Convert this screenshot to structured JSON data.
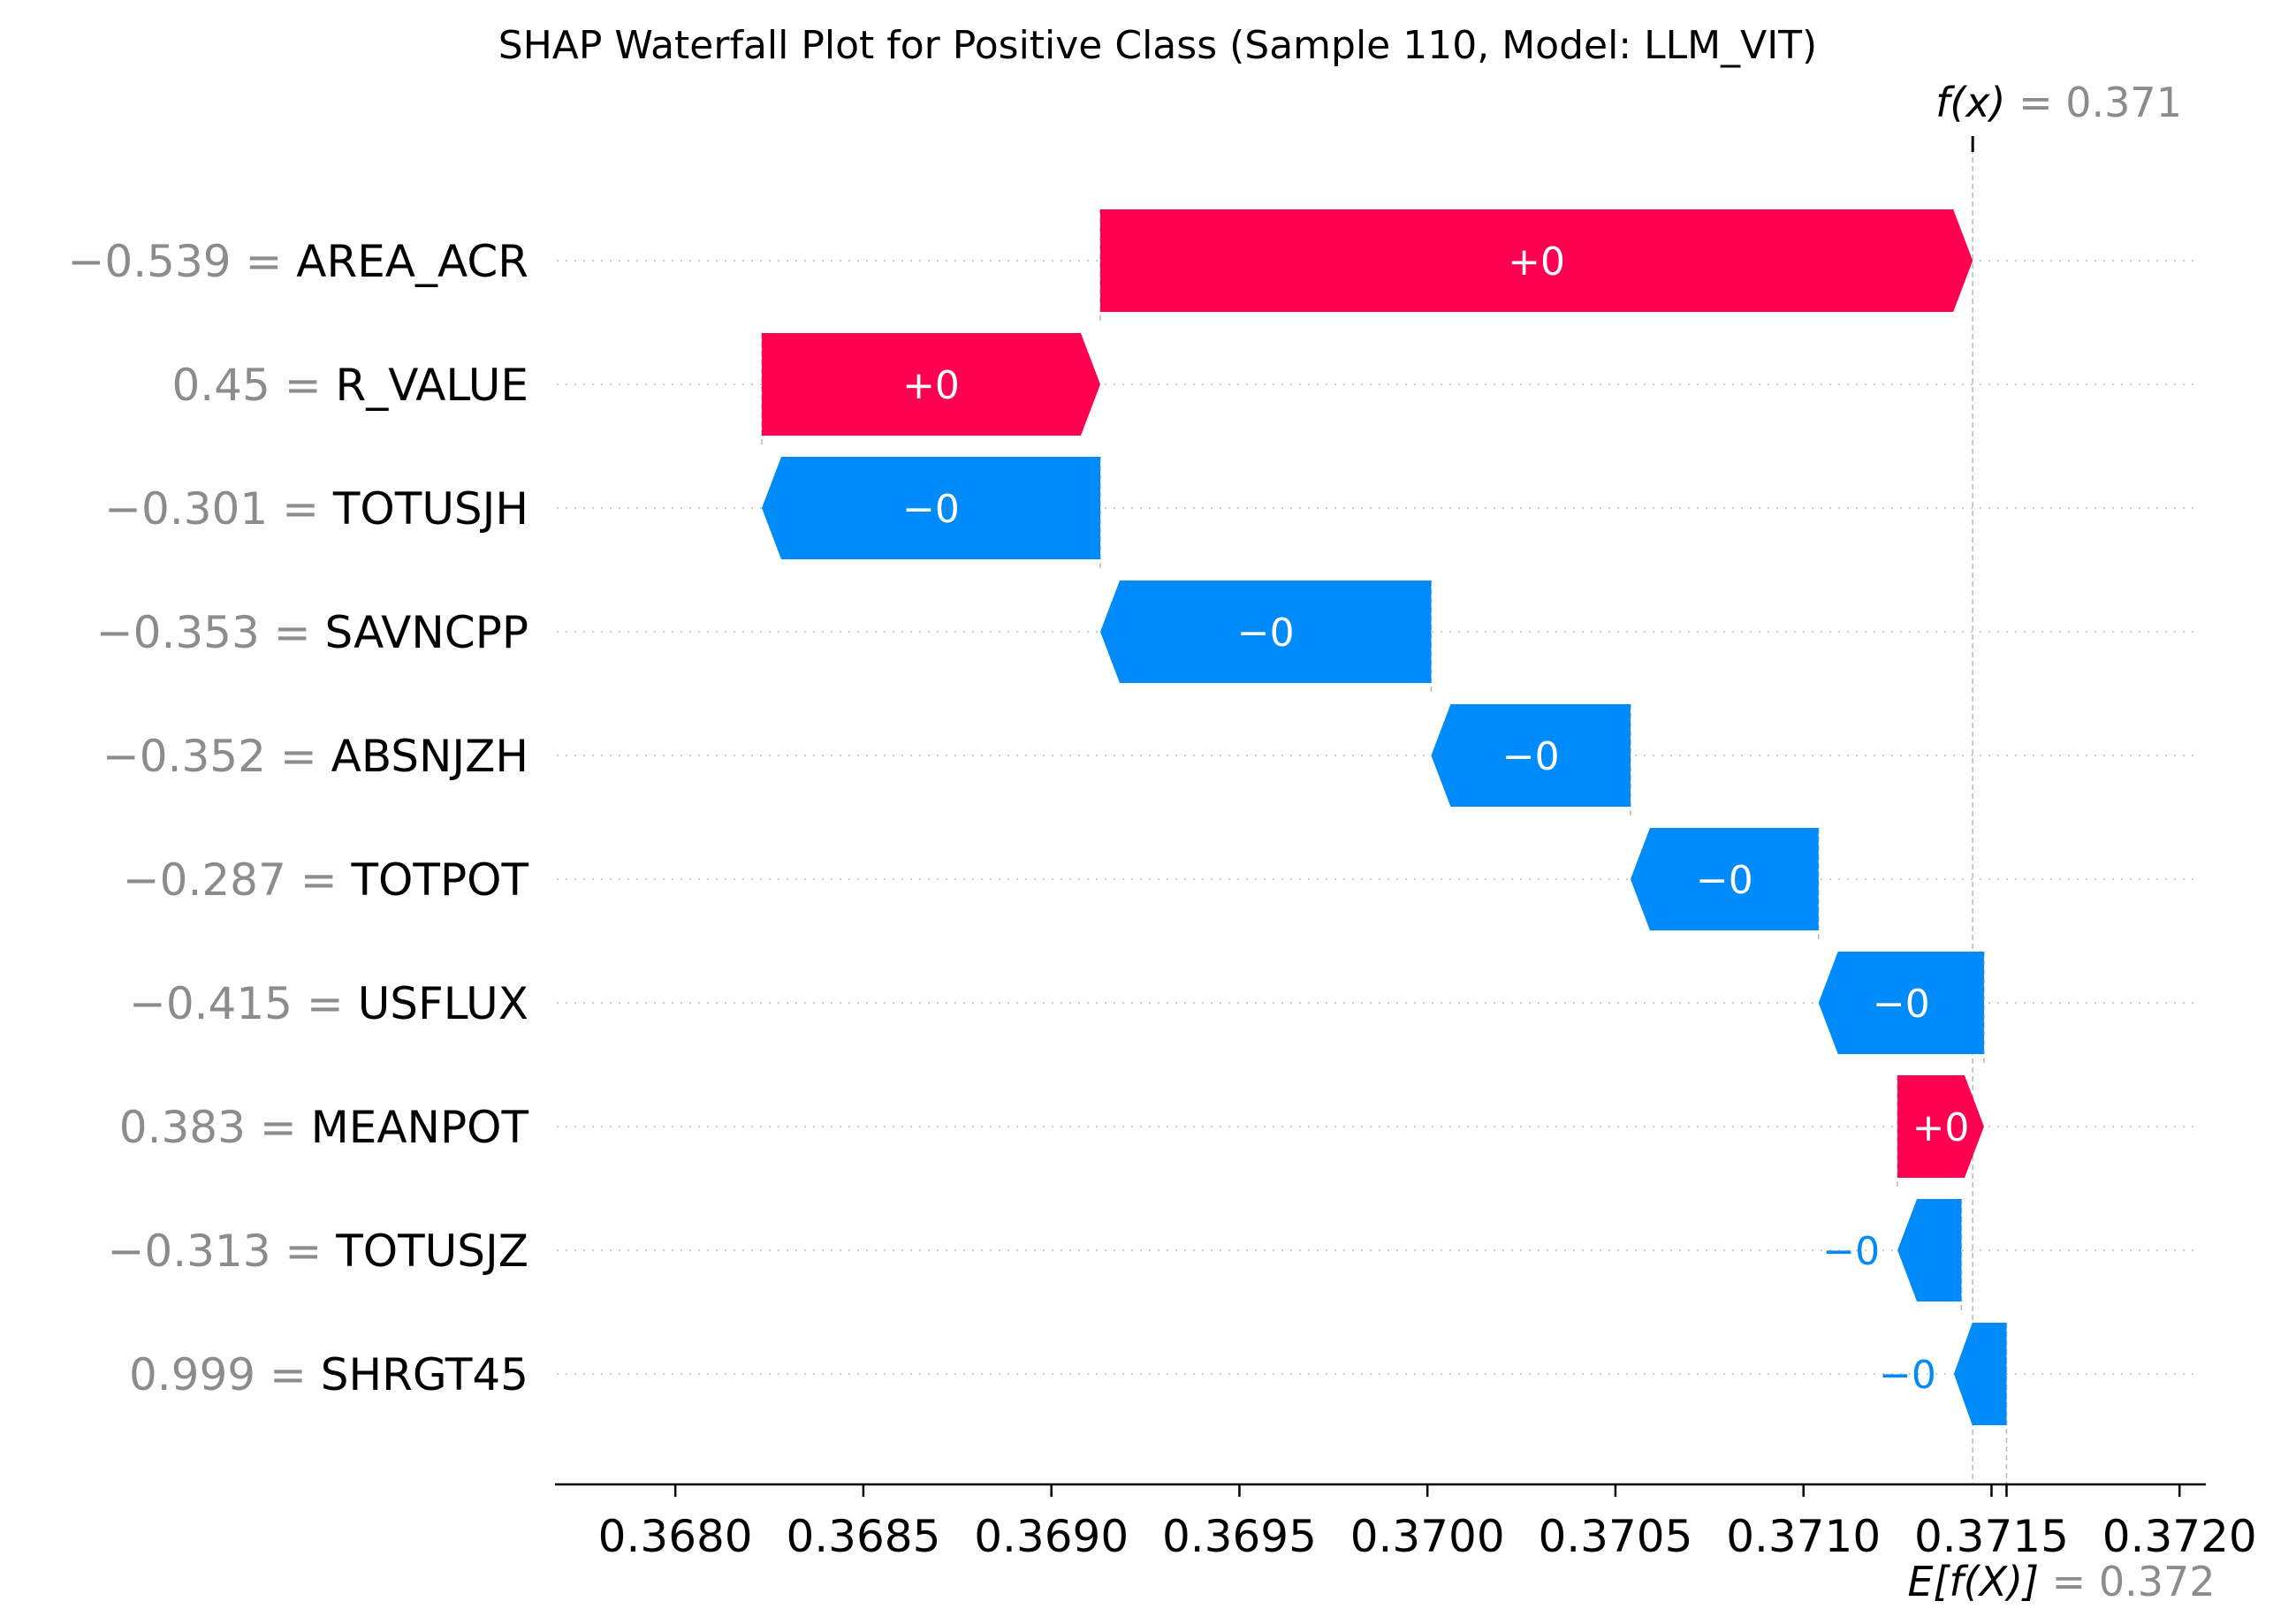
{
  "chart_data": {
    "type": "bar",
    "subtype": "waterfall",
    "title": "SHAP Waterfall Plot for Positive Class (Sample 110, Model: LLM_VIT)",
    "xlim": [
      0.36768,
      0.37207
    ],
    "xticks": [
      "0.3680",
      "0.3685",
      "0.3690",
      "0.3695",
      "0.3700",
      "0.3705",
      "0.3710",
      "0.3715",
      "0.3720"
    ],
    "xtick_values": [
      0.368,
      0.3685,
      0.369,
      0.3695,
      0.37,
      0.3705,
      0.371,
      0.3715,
      0.372
    ],
    "fx": {
      "name": "f(x)",
      "eq": "=",
      "value": "0.371",
      "x": 0.37145
    },
    "efx": {
      "name": "E[f(X)]",
      "eq": "=",
      "value": "0.372",
      "x": 0.37154
    },
    "features": [
      {
        "value": "−0.539",
        "eq": "=",
        "name": "AREA_ACR",
        "start": 0.36913,
        "end": 0.37145,
        "direction": "positive",
        "label": "+0"
      },
      {
        "value": "0.45",
        "eq": "=",
        "name": "R_VALUE",
        "start": 0.36823,
        "end": 0.36913,
        "direction": "positive",
        "label": "+0"
      },
      {
        "value": "−0.301",
        "eq": "=",
        "name": "TOTUSJH",
        "start": 0.36913,
        "end": 0.36823,
        "direction": "negative",
        "label": "−0"
      },
      {
        "value": "−0.353",
        "eq": "=",
        "name": "SAVNCPP",
        "start": 0.37001,
        "end": 0.36913,
        "direction": "negative",
        "label": "−0"
      },
      {
        "value": "−0.352",
        "eq": "=",
        "name": "ABSNJZH",
        "start": 0.37054,
        "end": 0.37001,
        "direction": "negative",
        "label": "−0"
      },
      {
        "value": "−0.287",
        "eq": "=",
        "name": "TOTPOT",
        "start": 0.37104,
        "end": 0.37054,
        "direction": "negative",
        "label": "−0"
      },
      {
        "value": "−0.415",
        "eq": "=",
        "name": "USFLUX",
        "start": 0.37148,
        "end": 0.37104,
        "direction": "negative",
        "label": "−0"
      },
      {
        "value": "0.383",
        "eq": "=",
        "name": "MEANPOT",
        "start": 0.37125,
        "end": 0.37148,
        "direction": "positive",
        "label": "+0"
      },
      {
        "value": "−0.313",
        "eq": "=",
        "name": "TOTUSJZ",
        "start": 0.37142,
        "end": 0.37125,
        "direction": "negative",
        "label": "−0"
      },
      {
        "value": "0.999",
        "eq": "=",
        "name": "SHRGT45",
        "start": 0.37154,
        "end": 0.3714,
        "direction": "negative",
        "label": "−0"
      }
    ],
    "colors": {
      "positive": "#ff0051",
      "negative": "#008bfb",
      "value_text": "#8c8c8c"
    },
    "grid": "horizontal-dotted"
  }
}
